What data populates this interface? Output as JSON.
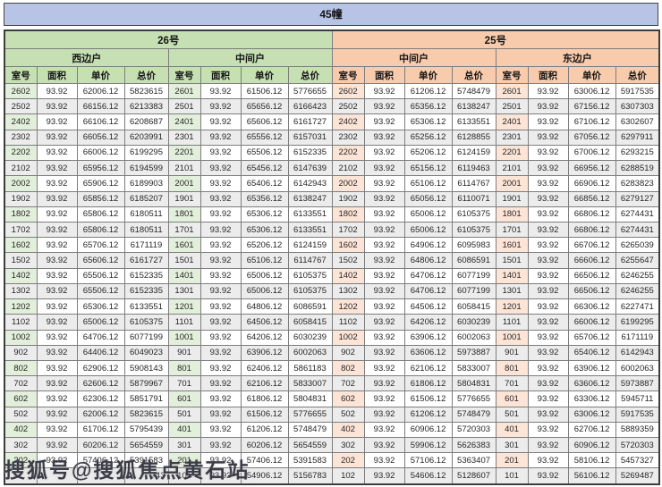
{
  "title": "45幢",
  "watermark": "搜狐号@搜狐焦点黄石站",
  "colors": {
    "title_bg": "#b7c4e6",
    "green_header": "#c6e0b4",
    "green_room": "#e2efda",
    "orange_header": "#f8cbad",
    "orange_room": "#fce4d6",
    "stripe": "#ececec"
  },
  "groups": [
    {
      "label": "26号",
      "theme": "green",
      "units": [
        "西边户",
        "中间户"
      ]
    },
    {
      "label": "25号",
      "theme": "orange",
      "units": [
        "中间户",
        "东边户"
      ]
    }
  ],
  "col_headers": [
    "室号",
    "面积",
    "单价",
    "总价"
  ],
  "rows": [
    [
      "2602",
      "93.92",
      "62006.12",
      "5823615",
      "2601",
      "93.92",
      "61506.12",
      "5776655",
      "2602",
      "93.92",
      "61206.12",
      "5748479",
      "2601",
      "93.92",
      "63006.12",
      "5917535"
    ],
    [
      "2502",
      "93.92",
      "66156.12",
      "6213383",
      "2501",
      "93.92",
      "65656.12",
      "6166423",
      "2502",
      "93.92",
      "65356.12",
      "6138247",
      "2501",
      "93.92",
      "67156.12",
      "6307303"
    ],
    [
      "2402",
      "93.92",
      "66106.12",
      "6208687",
      "2401",
      "93.92",
      "65606.12",
      "6161727",
      "2402",
      "93.92",
      "65306.12",
      "6133551",
      "2401",
      "93.92",
      "67106.12",
      "6302607"
    ],
    [
      "2302",
      "93.92",
      "66056.12",
      "6203991",
      "2301",
      "93.92",
      "65556.12",
      "6157031",
      "2302",
      "93.92",
      "65256.12",
      "6128855",
      "2301",
      "93.92",
      "67056.12",
      "6297911"
    ],
    [
      "2202",
      "93.92",
      "66006.12",
      "6199295",
      "2201",
      "93.92",
      "65506.12",
      "6152335",
      "2202",
      "93.92",
      "65206.12",
      "6124159",
      "2201",
      "93.92",
      "67006.12",
      "6293215"
    ],
    [
      "2102",
      "93.92",
      "65956.12",
      "6194599",
      "2101",
      "93.92",
      "65456.12",
      "6147639",
      "2102",
      "93.92",
      "65156.12",
      "6119463",
      "2101",
      "93.92",
      "66956.12",
      "6288519"
    ],
    [
      "2002",
      "93.92",
      "65906.12",
      "6189903",
      "2001",
      "93.92",
      "65406.12",
      "6142943",
      "2002",
      "93.92",
      "65106.12",
      "6114767",
      "2001",
      "93.92",
      "66906.12",
      "6283823"
    ],
    [
      "1902",
      "93.92",
      "65856.12",
      "6185207",
      "1901",
      "93.92",
      "65356.12",
      "6138247",
      "1902",
      "93.92",
      "65056.12",
      "6110071",
      "1901",
      "93.92",
      "66856.12",
      "6279127"
    ],
    [
      "1802",
      "93.92",
      "65806.12",
      "6180511",
      "1801",
      "93.92",
      "65306.12",
      "6133551",
      "1802",
      "93.92",
      "65006.12",
      "6105375",
      "1801",
      "93.92",
      "66806.12",
      "6274431"
    ],
    [
      "1702",
      "93.92",
      "65806.12",
      "6180511",
      "1701",
      "93.92",
      "65306.12",
      "6133551",
      "1702",
      "93.92",
      "65006.12",
      "6105375",
      "1701",
      "93.92",
      "66806.12",
      "6274431"
    ],
    [
      "1602",
      "93.92",
      "65706.12",
      "6171119",
      "1601",
      "93.92",
      "65206.12",
      "6124159",
      "1602",
      "93.92",
      "64906.12",
      "6095983",
      "1601",
      "93.92",
      "66706.12",
      "6265039"
    ],
    [
      "1502",
      "93.92",
      "65606.12",
      "6161727",
      "1501",
      "93.92",
      "65106.12",
      "6114767",
      "1502",
      "93.92",
      "64806.12",
      "6086591",
      "1501",
      "93.92",
      "66606.12",
      "6255647"
    ],
    [
      "1402",
      "93.92",
      "65506.12",
      "6152335",
      "1401",
      "93.92",
      "65006.12",
      "6105375",
      "1402",
      "93.92",
      "64706.12",
      "6077199",
      "1401",
      "93.92",
      "66506.12",
      "6246255"
    ],
    [
      "1302",
      "93.92",
      "65506.12",
      "6152335",
      "1301",
      "93.92",
      "65006.12",
      "6105375",
      "1302",
      "93.92",
      "64706.12",
      "6077199",
      "1301",
      "93.92",
      "66506.12",
      "6246255"
    ],
    [
      "1202",
      "93.92",
      "65306.12",
      "6133551",
      "1201",
      "93.92",
      "64806.12",
      "6086591",
      "1202",
      "93.92",
      "64506.12",
      "6058415",
      "1201",
      "93.92",
      "66306.12",
      "6227471"
    ],
    [
      "1102",
      "93.92",
      "65006.12",
      "6105375",
      "1101",
      "93.92",
      "64506.12",
      "6058415",
      "1102",
      "93.92",
      "64206.12",
      "6030239",
      "1101",
      "93.92",
      "66006.12",
      "6199295"
    ],
    [
      "1002",
      "93.92",
      "64706.12",
      "6077199",
      "1001",
      "93.92",
      "64206.12",
      "6030239",
      "1002",
      "93.92",
      "63906.12",
      "6002063",
      "1001",
      "93.92",
      "65706.12",
      "6171119"
    ],
    [
      "902",
      "93.92",
      "64406.12",
      "6049023",
      "901",
      "93.92",
      "63906.12",
      "6002063",
      "902",
      "93.92",
      "63606.12",
      "5973887",
      "901",
      "93.92",
      "65406.12",
      "6142943"
    ],
    [
      "802",
      "93.92",
      "62906.12",
      "5908143",
      "801",
      "93.92",
      "62406.12",
      "5861183",
      "802",
      "93.92",
      "62106.12",
      "5833007",
      "801",
      "93.92",
      "63906.12",
      "6002063"
    ],
    [
      "702",
      "93.92",
      "62606.12",
      "5879967",
      "701",
      "93.92",
      "62106.12",
      "5833007",
      "702",
      "93.92",
      "61806.12",
      "5804831",
      "701",
      "93.92",
      "63606.12",
      "5973887"
    ],
    [
      "602",
      "93.92",
      "62306.12",
      "5851791",
      "601",
      "93.92",
      "61806.12",
      "5804831",
      "602",
      "93.92",
      "61506.12",
      "5776655",
      "601",
      "93.92",
      "63306.12",
      "5945711"
    ],
    [
      "502",
      "93.92",
      "62006.12",
      "5823615",
      "501",
      "93.92",
      "61506.12",
      "5776655",
      "502",
      "93.92",
      "61206.12",
      "5748479",
      "501",
      "93.92",
      "63006.12",
      "5917535"
    ],
    [
      "402",
      "93.92",
      "61706.12",
      "5795439",
      "401",
      "93.92",
      "61206.12",
      "5748479",
      "402",
      "93.92",
      "60906.12",
      "5720303",
      "401",
      "93.92",
      "62706.12",
      "5889359"
    ],
    [
      "302",
      "93.92",
      "60206.12",
      "5654559",
      "301",
      "93.92",
      "60206.12",
      "5654559",
      "302",
      "93.92",
      "59906.12",
      "5626383",
      "301",
      "93.92",
      "60906.12",
      "5720303"
    ],
    [
      "202",
      "93.92",
      "57406.12",
      "5391583",
      "201",
      "93.92",
      "57406.12",
      "5391583",
      "202",
      "93.92",
      "57106.12",
      "5363407",
      "201",
      "93.92",
      "58106.12",
      "5457327"
    ],
    [
      "",
      "",
      "",
      "743",
      "101",
      "93.92",
      "54906.12",
      "5156783",
      "102",
      "93.92",
      "54606.12",
      "5128607",
      "101",
      "93.92",
      "56106.12",
      "5269487"
    ]
  ]
}
